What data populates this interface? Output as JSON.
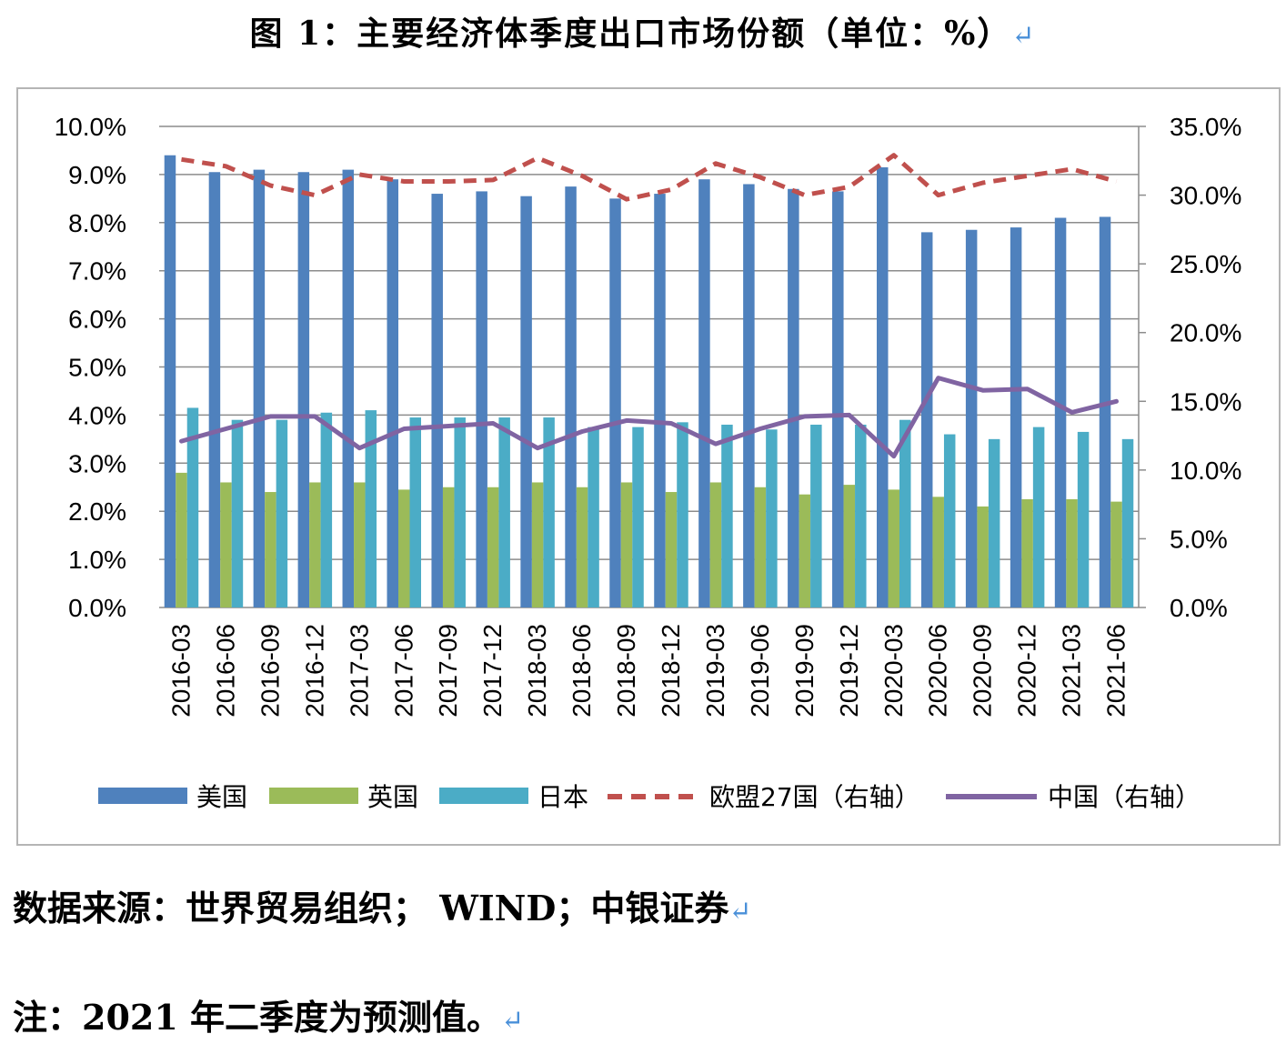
{
  "title": "图 1：主要经济体季度出口市场份额（单位：%）",
  "return_mark": "↵",
  "source": "数据来源：世界贸易组织； WIND；中银证券",
  "note": "注：2021 年二季度为预测值。",
  "chart_data": {
    "type": "bar+line",
    "categories": [
      "2016-03",
      "2016-06",
      "2016-09",
      "2016-12",
      "2017-03",
      "2017-06",
      "2017-09",
      "2017-12",
      "2018-03",
      "2018-06",
      "2018-09",
      "2018-12",
      "2019-03",
      "2019-06",
      "2019-09",
      "2019-12",
      "2020-03",
      "2020-06",
      "2020-09",
      "2020-12",
      "2021-03",
      "2021-06"
    ],
    "left_axis": {
      "min": 0,
      "max": 10,
      "ticks": [
        "0.0%",
        "1.0%",
        "2.0%",
        "3.0%",
        "4.0%",
        "5.0%",
        "6.0%",
        "7.0%",
        "8.0%",
        "9.0%",
        "10.0%"
      ]
    },
    "right_axis": {
      "min": 0,
      "max": 35,
      "ticks": [
        "0.0%",
        "5.0%",
        "10.0%",
        "15.0%",
        "20.0%",
        "25.0%",
        "30.0%",
        "35.0%"
      ]
    },
    "series": [
      {
        "name": "美国",
        "kind": "bar",
        "axis": "left",
        "color": "#4f81bd",
        "values": [
          9.4,
          9.05,
          9.1,
          9.05,
          9.1,
          8.9,
          8.6,
          8.65,
          8.55,
          8.75,
          8.5,
          8.6,
          8.9,
          8.8,
          8.7,
          8.65,
          9.15,
          7.8,
          7.85,
          7.9,
          8.1,
          8.12
        ]
      },
      {
        "name": "英国",
        "kind": "bar",
        "axis": "left",
        "color": "#9bbb59",
        "values": [
          2.8,
          2.6,
          2.4,
          2.6,
          2.6,
          2.45,
          2.5,
          2.5,
          2.6,
          2.5,
          2.6,
          2.4,
          2.6,
          2.5,
          2.35,
          2.55,
          2.45,
          2.3,
          2.1,
          2.25,
          2.25,
          2.2
        ]
      },
      {
        "name": "日本",
        "kind": "bar",
        "axis": "left",
        "color": "#4bacc6",
        "values": [
          4.15,
          3.9,
          3.9,
          4.05,
          4.1,
          3.95,
          3.95,
          3.95,
          3.95,
          3.75,
          3.75,
          3.85,
          3.8,
          3.7,
          3.8,
          3.8,
          3.9,
          3.6,
          3.5,
          3.75,
          3.65,
          3.5
        ]
      },
      {
        "name": "欧盟27国（右轴）",
        "kind": "line",
        "style": "dashed",
        "axis": "right",
        "color": "#c0504d",
        "values": [
          32.6,
          32.1,
          30.7,
          30.0,
          31.5,
          31.0,
          31.0,
          31.1,
          32.7,
          31.4,
          29.7,
          30.4,
          32.3,
          31.3,
          30.0,
          30.6,
          32.9,
          30.0,
          30.9,
          31.4,
          31.9,
          31.0
        ]
      },
      {
        "name": "中国（右轴）",
        "kind": "line",
        "style": "solid",
        "axis": "right",
        "color": "#8064a2",
        "values": [
          12.1,
          13.0,
          13.9,
          13.9,
          11.6,
          13.0,
          13.2,
          13.4,
          11.6,
          12.8,
          13.6,
          13.4,
          11.9,
          13.0,
          13.9,
          14.0,
          11.0,
          16.7,
          15.8,
          15.9,
          14.2,
          15.0
        ]
      }
    ]
  }
}
